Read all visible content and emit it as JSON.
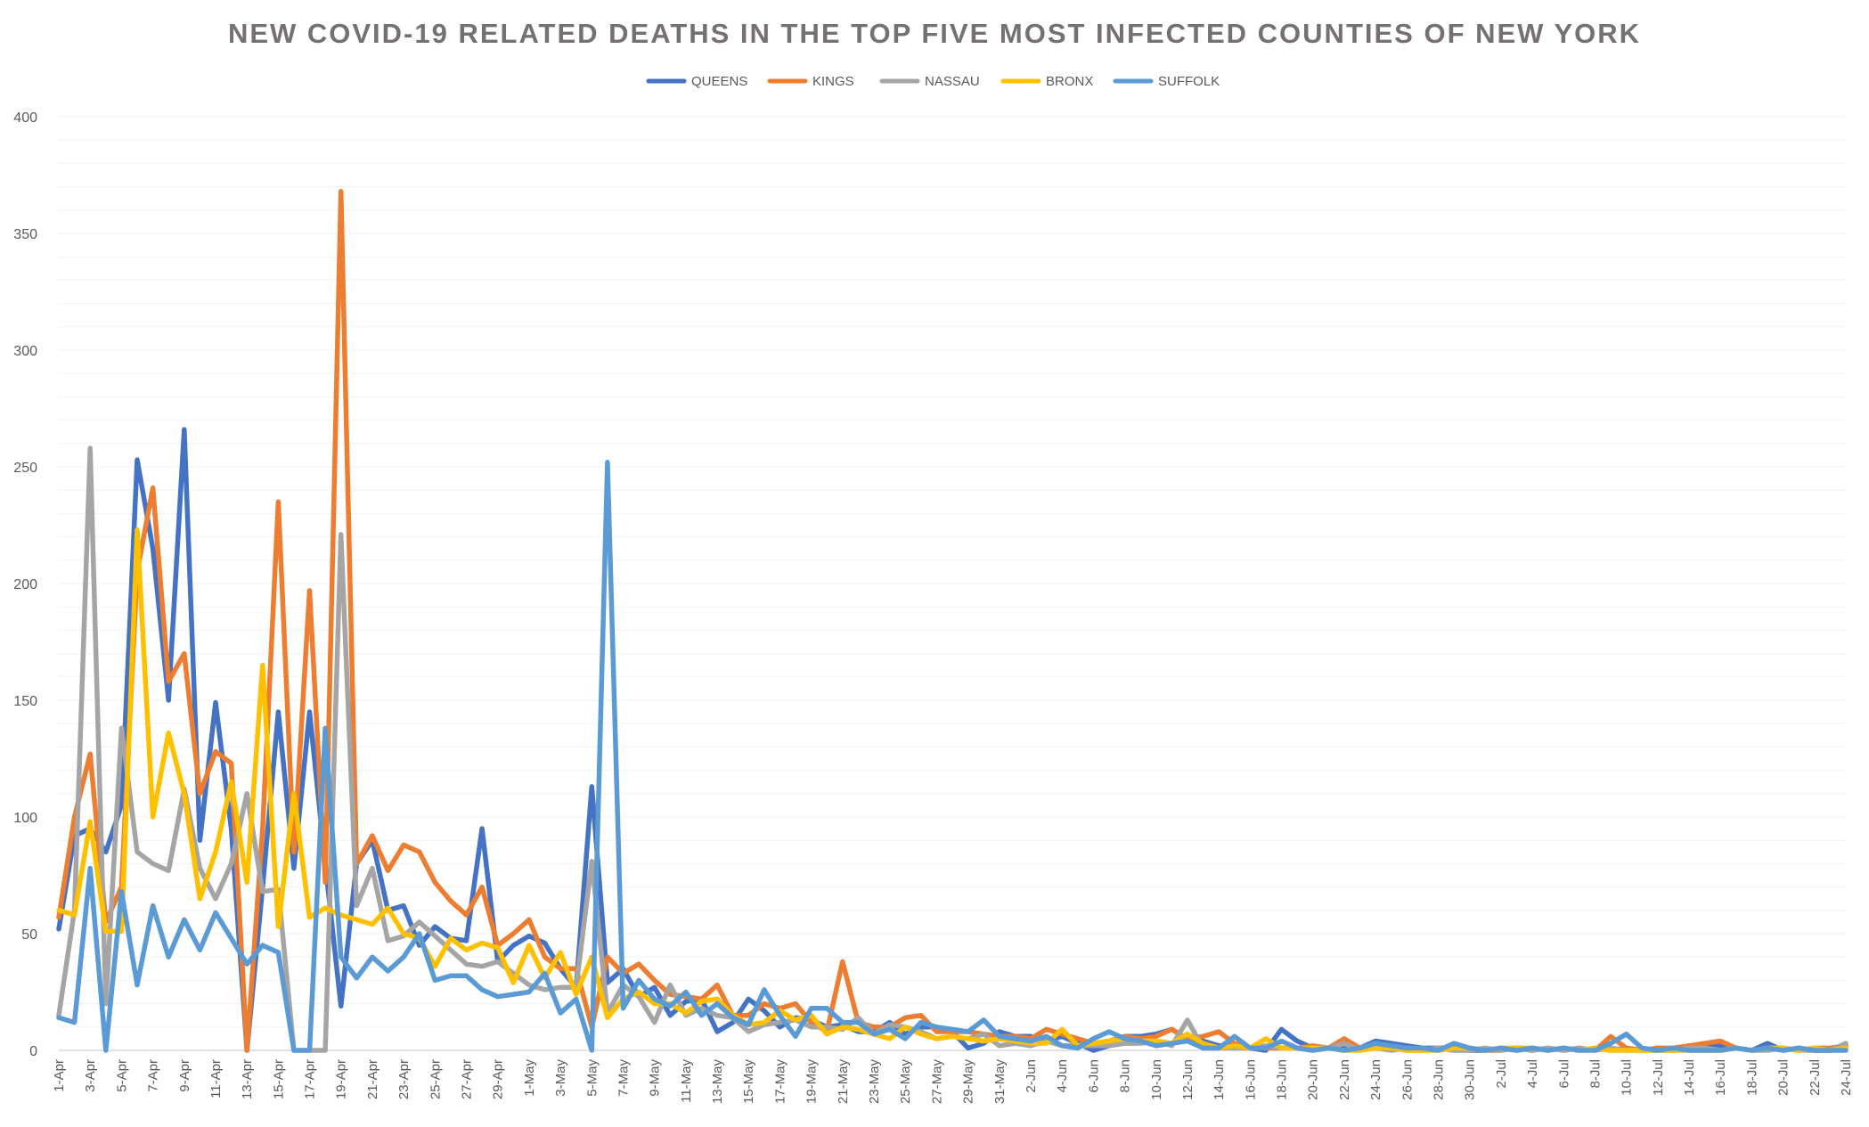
{
  "chart_data": {
    "type": "line",
    "title": "NEW COVID-19 RELATED DEATHS IN THE TOP FIVE MOST INFECTED COUNTIES OF NEW YORK",
    "xlabel": "",
    "ylabel": "",
    "ylim": [
      0,
      400
    ],
    "yticks": [
      0,
      50,
      100,
      150,
      200,
      250,
      300,
      350,
      400
    ],
    "minor_grid_step": 10,
    "legend_position": "top-center",
    "x": [
      "1-Apr",
      "2-Apr",
      "3-Apr",
      "4-Apr",
      "5-Apr",
      "6-Apr",
      "7-Apr",
      "8-Apr",
      "9-Apr",
      "10-Apr",
      "11-Apr",
      "12-Apr",
      "13-Apr",
      "14-Apr",
      "15-Apr",
      "16-Apr",
      "17-Apr",
      "18-Apr",
      "19-Apr",
      "20-Apr",
      "21-Apr",
      "22-Apr",
      "23-Apr",
      "24-Apr",
      "25-Apr",
      "26-Apr",
      "27-Apr",
      "28-Apr",
      "29-Apr",
      "30-Apr",
      "1-May",
      "2-May",
      "3-May",
      "4-May",
      "5-May",
      "6-May",
      "7-May",
      "8-May",
      "9-May",
      "10-May",
      "11-May",
      "12-May",
      "13-May",
      "14-May",
      "15-May",
      "16-May",
      "17-May",
      "18-May",
      "19-May",
      "20-May",
      "21-May",
      "22-May",
      "23-May",
      "24-May",
      "25-May",
      "26-May",
      "27-May",
      "28-May",
      "29-May",
      "30-May",
      "31-May",
      "1-Jun",
      "2-Jun",
      "3-Jun",
      "4-Jun",
      "5-Jun",
      "6-Jun",
      "7-Jun",
      "8-Jun",
      "9-Jun",
      "10-Jun",
      "11-Jun",
      "12-Jun",
      "13-Jun",
      "14-Jun",
      "15-Jun",
      "16-Jun",
      "17-Jun",
      "18-Jun",
      "19-Jun",
      "20-Jun",
      "21-Jun",
      "22-Jun",
      "23-Jun",
      "24-Jun",
      "25-Jun",
      "26-Jun",
      "27-Jun",
      "28-Jun",
      "29-Jun",
      "30-Jun",
      "1-Jul",
      "2-Jul",
      "3-Jul",
      "4-Jul",
      "5-Jul",
      "6-Jul",
      "7-Jul",
      "8-Jul",
      "9-Jul",
      "10-Jul",
      "11-Jul",
      "12-Jul",
      "13-Jul",
      "14-Jul",
      "15-Jul",
      "16-Jul",
      "17-Jul",
      "18-Jul",
      "19-Jul",
      "20-Jul",
      "21-Jul",
      "22-Jul",
      "23-Jul",
      "24-Jul"
    ],
    "x_tick_labels": [
      "1-Apr",
      "3-Apr",
      "5-Apr",
      "7-Apr",
      "9-Apr",
      "11-Apr",
      "13-Apr",
      "15-Apr",
      "17-Apr",
      "19-Apr",
      "21-Apr",
      "23-Apr",
      "25-Apr",
      "27-Apr",
      "29-Apr",
      "1-May",
      "3-May",
      "5-May",
      "7-May",
      "9-May",
      "11-May",
      "13-May",
      "15-May",
      "17-May",
      "19-May",
      "21-May",
      "23-May",
      "25-May",
      "27-May",
      "29-May",
      "31-May",
      "2-Jun",
      "4-Jun",
      "6-Jun",
      "8-Jun",
      "10-Jun",
      "12-Jun",
      "14-Jun",
      "16-Jun",
      "18-Jun",
      "20-Jun",
      "22-Jun",
      "24-Jun",
      "26-Jun",
      "28-Jun",
      "30-Jun",
      "2-Jul",
      "4-Jul",
      "6-Jul",
      "8-Jul",
      "10-Jul",
      "12-Jul",
      "14-Jul",
      "16-Jul",
      "18-Jul",
      "20-Jul",
      "22-Jul",
      "24-Jul"
    ],
    "series": [
      {
        "name": "QUEENS",
        "color": "#4472C4",
        "values": [
          52,
          92,
          95,
          85,
          105,
          253,
          215,
          150,
          266,
          90,
          149,
          95,
          0,
          70,
          145,
          78,
          145,
          80,
          19,
          80,
          90,
          60,
          62,
          45,
          53,
          48,
          47,
          95,
          38,
          45,
          49,
          46,
          35,
          27,
          113,
          29,
          35,
          23,
          27,
          15,
          21,
          22,
          8,
          12,
          22,
          17,
          10,
          14,
          13,
          10,
          11,
          8,
          8,
          12,
          7,
          10,
          10,
          8,
          1,
          3,
          8,
          6,
          6,
          4,
          6,
          3,
          0,
          2,
          6,
          6,
          7,
          9,
          5,
          4,
          2,
          2,
          1,
          0,
          9,
          4,
          1,
          1,
          1,
          1,
          4,
          3,
          2,
          1,
          1,
          1,
          0,
          0,
          1,
          0,
          1,
          0,
          1,
          0,
          1,
          0,
          1,
          0,
          1,
          0,
          2,
          2,
          2,
          1,
          0,
          3,
          0,
          1,
          0,
          0,
          1
        ]
      },
      {
        "name": "KINGS",
        "color": "#ED7D31",
        "values": [
          57,
          100,
          127,
          55,
          70,
          205,
          241,
          158,
          170,
          110,
          128,
          123,
          0,
          95,
          235,
          85,
          197,
          72,
          368,
          80,
          92,
          77,
          88,
          85,
          72,
          64,
          58,
          70,
          45,
          50,
          56,
          40,
          35,
          35,
          10,
          40,
          33,
          37,
          30,
          24,
          23,
          22,
          28,
          15,
          15,
          20,
          18,
          20,
          12,
          8,
          38,
          12,
          10,
          10,
          14,
          15,
          8,
          8,
          8,
          7,
          6,
          6,
          5,
          9,
          7,
          5,
          3,
          4,
          6,
          5,
          6,
          9,
          5,
          6,
          8,
          3,
          1,
          1,
          1,
          1,
          2,
          1,
          5,
          1,
          1,
          1,
          0,
          0,
          1,
          0,
          1,
          0,
          0,
          1,
          0,
          1,
          0,
          1,
          0,
          6,
          1,
          0,
          1,
          1,
          2,
          3,
          4,
          1,
          0,
          1,
          1,
          0,
          1,
          1,
          2
        ]
      },
      {
        "name": "NASSAU",
        "color": "#A5A5A5",
        "values": [
          15,
          60,
          258,
          20,
          138,
          85,
          80,
          77,
          112,
          78,
          65,
          80,
          110,
          68,
          69,
          0,
          0,
          0,
          221,
          62,
          78,
          47,
          49,
          55,
          49,
          43,
          37,
          36,
          38,
          33,
          28,
          26,
          27,
          27,
          81,
          16,
          28,
          23,
          12,
          28,
          15,
          18,
          15,
          14,
          8,
          11,
          12,
          13,
          10,
          10,
          9,
          14,
          7,
          11,
          10,
          8,
          5,
          6,
          5,
          7,
          2,
          3,
          2,
          4,
          2,
          2,
          2,
          2,
          3,
          3,
          4,
          2,
          13,
          1,
          1,
          1,
          1,
          2,
          1,
          1,
          0,
          1,
          3,
          0,
          1,
          0,
          1,
          0,
          1,
          0,
          0,
          1,
          0,
          1,
          0,
          1,
          0,
          1,
          0,
          1,
          0,
          0,
          0,
          0,
          1,
          1,
          0,
          1,
          0,
          0,
          1,
          0,
          0,
          0,
          3
        ]
      },
      {
        "name": "BRONX",
        "color": "#FFC000",
        "values": [
          60,
          58,
          98,
          51,
          51,
          223,
          100,
          136,
          110,
          65,
          85,
          115,
          72,
          165,
          53,
          110,
          57,
          61,
          58,
          56,
          54,
          61,
          50,
          48,
          36,
          48,
          43,
          46,
          44,
          29,
          45,
          31,
          42,
          24,
          40,
          14,
          22,
          25,
          20,
          20,
          16,
          21,
          22,
          15,
          11,
          12,
          17,
          13,
          15,
          7,
          10,
          9,
          7,
          5,
          10,
          7,
          5,
          6,
          5,
          4,
          5,
          4,
          3,
          3,
          9,
          2,
          3,
          4,
          5,
          4,
          4,
          3,
          7,
          3,
          1,
          2,
          1,
          5,
          1,
          1,
          1,
          1,
          0,
          0,
          1,
          1,
          0,
          0,
          0,
          1,
          1,
          0,
          1,
          1,
          1,
          0,
          1,
          0,
          1,
          0,
          0,
          0,
          0,
          0,
          0,
          0,
          0,
          1,
          0,
          1,
          1,
          0,
          1,
          0,
          1
        ]
      },
      {
        "name": "SUFFOLK",
        "color": "#5B9BD5",
        "values": [
          14,
          12,
          78,
          0,
          68,
          28,
          62,
          40,
          56,
          43,
          59,
          48,
          37,
          45,
          42,
          0,
          0,
          138,
          40,
          31,
          40,
          34,
          40,
          50,
          30,
          32,
          32,
          26,
          23,
          24,
          25,
          33,
          16,
          22,
          0,
          252,
          18,
          30,
          22,
          19,
          25,
          15,
          20,
          14,
          11,
          26,
          15,
          6,
          18,
          18,
          12,
          12,
          7,
          9,
          5,
          12,
          10,
          9,
          8,
          13,
          6,
          5,
          4,
          6,
          2,
          1,
          5,
          8,
          5,
          4,
          2,
          3,
          4,
          1,
          1,
          6,
          1,
          1,
          4,
          1,
          0,
          1,
          0,
          1,
          3,
          2,
          1,
          1,
          0,
          3,
          1,
          0,
          1,
          0,
          1,
          0,
          1,
          0,
          0,
          3,
          7,
          1,
          0,
          1,
          0,
          0,
          0,
          1,
          0,
          1,
          0,
          1,
          0,
          0,
          0
        ]
      }
    ]
  }
}
